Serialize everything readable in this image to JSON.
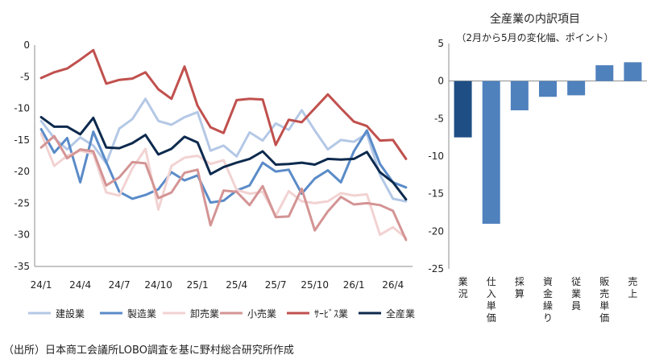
{
  "source": "（出所）日本商工会議所LOBO調査を基に野村総合研究所作成",
  "chart_data": [
    {
      "type": "line",
      "x": [
        "24/1",
        "24/2",
        "24/3",
        "24/4",
        "24/5",
        "24/6",
        "24/7",
        "24/8",
        "24/9",
        "24/10",
        "24/11",
        "24/12",
        "25/1",
        "25/2",
        "25/3",
        "25/4",
        "25/5",
        "25/6",
        "25/7",
        "25/8",
        "25/9",
        "25/10",
        "25/11",
        "25/12",
        "26/1",
        "26/2",
        "26/3",
        "26/4",
        "26/5"
      ],
      "x_tick_labels": [
        "24/1",
        "24/4",
        "24/7",
        "24/10",
        "25/1",
        "25/4",
        "25/7",
        "25/10",
        "26/1",
        "26/4"
      ],
      "y_ticks": [
        0,
        -5,
        -10,
        -15,
        -20,
        -25,
        -30,
        -35
      ],
      "ylim": [
        -35,
        0
      ],
      "series": [
        {
          "name": "建設業",
          "color": "#b4c8e6",
          "values": [
            -12,
            -14.7,
            -16.5,
            -14.6,
            -15.9,
            -18.7,
            -13.2,
            -11.7,
            -8.5,
            -12,
            -12.6,
            -11.4,
            -10.6,
            -16.7,
            -15.9,
            -17.6,
            -13.8,
            -15.1,
            -12.4,
            -13.4,
            -10.3,
            -13.5,
            -16.5,
            -15,
            -15.3,
            -14,
            -20.5,
            -24.3,
            -24.7
          ]
        },
        {
          "name": "製造業",
          "color": "#5a8bc8",
          "values": [
            -13.3,
            -17,
            -14.7,
            -21.7,
            -13.7,
            -18.5,
            -23.2,
            -24.3,
            -23.7,
            -22.8,
            -20.1,
            -21.4,
            -20.6,
            -24.9,
            -24.6,
            -23,
            -22.2,
            -18.6,
            -20,
            -19.7,
            -23.5,
            -21.1,
            -19.8,
            -21.7,
            -16.8,
            -13.5,
            -18.8,
            -21.7,
            -22.5
          ]
        },
        {
          "name": "卸売業",
          "color": "#f2d2d2",
          "values": [
            -14,
            -19.1,
            -17.5,
            -16.7,
            -17.2,
            -23.3,
            -23.8,
            -19.5,
            -16.4,
            -26,
            -19.1,
            -17.8,
            -17.5,
            -18.8,
            -18.2,
            -22.9,
            -23.5,
            -23.2,
            -27,
            -23.1,
            -24.7,
            -25,
            -24.7,
            -23.4,
            -23.8,
            -23.6,
            -30,
            -28.8,
            -30.5
          ]
        },
        {
          "name": "小売業",
          "color": "#d49494",
          "values": [
            -16.2,
            -14.4,
            -17.9,
            -16.5,
            -16.8,
            -22.2,
            -20.9,
            -18.5,
            -18.7,
            -24.2,
            -23.3,
            -20.2,
            -19.7,
            -28.5,
            -23,
            -23.2,
            -25.3,
            -22.3,
            -27.2,
            -27.1,
            -22.7,
            -29.3,
            -26.3,
            -24,
            -25.2,
            -25,
            -25.3,
            -26.2,
            -30.8
          ]
        },
        {
          "name": "ｻｰﾋﾞｽ業",
          "color": "#c0504d",
          "values": [
            -5.2,
            -4.3,
            -3.7,
            -2.3,
            -0.8,
            -6.1,
            -5.5,
            -5.3,
            -4.3,
            -7,
            -8.5,
            -3.4,
            -9.6,
            -13,
            -13.9,
            -8.7,
            -8.5,
            -8.6,
            -15.8,
            -11.8,
            -12.2,
            -10,
            -7.8,
            -10,
            -12.1,
            -12.8,
            -15.1,
            -15,
            -18
          ]
        },
        {
          "name": "全産業",
          "color": "#0d2a4e",
          "values": [
            -11.4,
            -12.9,
            -12.9,
            -14.1,
            -11.5,
            -16.2,
            -16.3,
            -15.5,
            -14.2,
            -17.3,
            -16.4,
            -14.5,
            -15.4,
            -20.4,
            -19.3,
            -18.6,
            -18,
            -16.8,
            -18.9,
            -18.8,
            -18.6,
            -18.9,
            -18,
            -18.1,
            -18,
            -16.9,
            -20.1,
            -21.7,
            -24.4
          ]
        }
      ],
      "legend_position": "bottom"
    },
    {
      "type": "bar",
      "title": "全産業の内訳項目",
      "subtitle": "（2月から5月の変化幅、ポイント）",
      "categories": [
        "業況",
        "仕入単価",
        "採算",
        "資金繰り",
        "従業員",
        "販売単価",
        "売上"
      ],
      "values": [
        -7.5,
        -19,
        -3.9,
        -2.1,
        -1.9,
        2.1,
        2.5
      ],
      "colors": [
        "#1f4e85",
        "#4f81bd",
        "#4f81bd",
        "#4f81bd",
        "#4f81bd",
        "#4f81bd",
        "#4f81bd"
      ],
      "y_ticks": [
        5,
        0,
        -5,
        -10,
        -15,
        -20,
        -25
      ],
      "ylim": [
        -25,
        5
      ]
    }
  ]
}
